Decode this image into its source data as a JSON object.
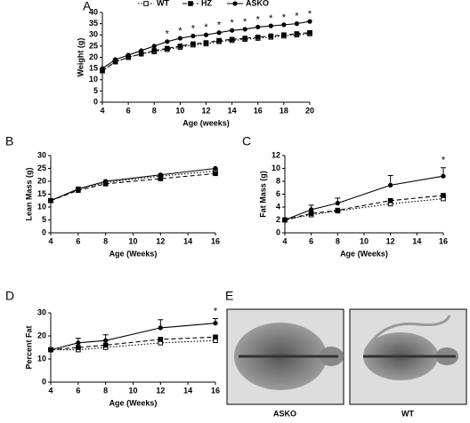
{
  "chart_data": [
    {
      "panel": "A",
      "type": "line",
      "xlabel": "Age (weeks)",
      "ylabel": "Weight (g)",
      "x": [
        4,
        5,
        6,
        7,
        8,
        9,
        10,
        11,
        12,
        13,
        14,
        15,
        16,
        17,
        18,
        19,
        20
      ],
      "xlim": [
        4,
        20
      ],
      "xticks": [
        4,
        6,
        8,
        10,
        12,
        14,
        16,
        18,
        20
      ],
      "ylim": [
        0,
        40
      ],
      "yticks": [
        0,
        5,
        10,
        15,
        20,
        25,
        30,
        35,
        40
      ],
      "legend": "top",
      "series": [
        {
          "name": "WT",
          "color": "#000000",
          "style": "dotted",
          "marker": "open-square",
          "values": [
            14,
            18,
            20,
            21.5,
            22.5,
            23.5,
            24.5,
            25.5,
            26,
            27,
            27.5,
            28,
            28.5,
            29,
            29.5,
            30,
            30.5
          ]
        },
        {
          "name": "HZ",
          "color": "#000000",
          "style": "dashed",
          "marker": "filled-square",
          "values": [
            14,
            18,
            20,
            21.5,
            23,
            24,
            25,
            26,
            26.5,
            27.5,
            28,
            28.5,
            29,
            29.5,
            30,
            30.5,
            31
          ]
        },
        {
          "name": "ASKO",
          "color": "#000000",
          "style": "solid",
          "marker": "filled-circle",
          "values": [
            15,
            19,
            21,
            23,
            25,
            27,
            28.5,
            29.5,
            30,
            31,
            32,
            32.5,
            33.5,
            34,
            34.5,
            35,
            36
          ]
        }
      ],
      "annotation": "*",
      "annotation_x": [
        9,
        10,
        11,
        12,
        13,
        14,
        15,
        16,
        17,
        18,
        19,
        20
      ]
    },
    {
      "panel": "B",
      "type": "line",
      "xlabel": "Age (Weeks)",
      "ylabel": "Lean Mass (g)",
      "x": [
        4,
        6,
        8,
        12,
        16
      ],
      "xlim": [
        4,
        16
      ],
      "xticks": [
        4,
        6,
        8,
        10,
        12,
        14,
        16
      ],
      "ylim": [
        0,
        30
      ],
      "yticks": [
        0,
        5,
        10,
        15,
        20,
        25,
        30
      ],
      "series": [
        {
          "color": "#000000",
          "style": "dotted",
          "marker": "open-square",
          "values": [
            12.5,
            17,
            19.5,
            22,
            24
          ]
        },
        {
          "color": "#000000",
          "style": "dashed",
          "marker": "filled-square",
          "values": [
            12.5,
            16.5,
            19,
            21,
            23
          ]
        },
        {
          "color": "#000000",
          "style": "solid",
          "marker": "filled-circle",
          "values": [
            12.5,
            17,
            20,
            22.5,
            25
          ]
        }
      ]
    },
    {
      "panel": "C",
      "type": "line",
      "xlabel": "Age (Weeks)",
      "ylabel": "Fat Mass (g)",
      "x": [
        4,
        6,
        8,
        12,
        16
      ],
      "xlim": [
        4,
        16
      ],
      "xticks": [
        4,
        6,
        8,
        10,
        12,
        14,
        16
      ],
      "ylim": [
        0,
        12
      ],
      "yticks": [
        0,
        2,
        4,
        6,
        8,
        10,
        12
      ],
      "series": [
        {
          "color": "#000000",
          "style": "dotted",
          "marker": "open-square",
          "values": [
            2,
            2.8,
            3.4,
            4.5,
            5.3
          ]
        },
        {
          "color": "#000000",
          "style": "dashed",
          "marker": "filled-square",
          "values": [
            2,
            3,
            3.5,
            5,
            5.8
          ]
        },
        {
          "color": "#000000",
          "style": "solid",
          "marker": "filled-circle",
          "values": [
            2,
            3.6,
            4.6,
            7.4,
            8.8
          ],
          "errors": [
            0,
            0.7,
            0.8,
            1.5,
            1.3
          ]
        }
      ],
      "annotation": "*",
      "annotation_x": [
        16
      ]
    },
    {
      "panel": "D",
      "type": "line",
      "xlabel": "Age (Weeks)",
      "ylabel": "Percent Fat",
      "x": [
        4,
        6,
        8,
        12,
        16
      ],
      "xlim": [
        4,
        16
      ],
      "xticks": [
        4,
        6,
        8,
        10,
        12,
        14,
        16
      ],
      "ylim": [
        0,
        30
      ],
      "yticks": [
        0,
        10,
        20,
        30
      ],
      "series": [
        {
          "color": "#000000",
          "style": "dotted",
          "marker": "open-square",
          "values": [
            14,
            14,
            15,
            17,
            18
          ]
        },
        {
          "color": "#000000",
          "style": "dashed",
          "marker": "filled-square",
          "values": [
            14,
            15,
            16,
            18.5,
            19.5
          ]
        },
        {
          "color": "#000000",
          "style": "solid",
          "marker": "filled-circle",
          "values": [
            14,
            17,
            18,
            23.5,
            25.5
          ],
          "errors": [
            0,
            2,
            2.5,
            3.5,
            2
          ]
        }
      ],
      "annotation": "*",
      "annotation_x": [
        16
      ]
    }
  ],
  "image_panel": {
    "panel": "E",
    "labels": [
      "ASKO",
      "WT"
    ]
  }
}
